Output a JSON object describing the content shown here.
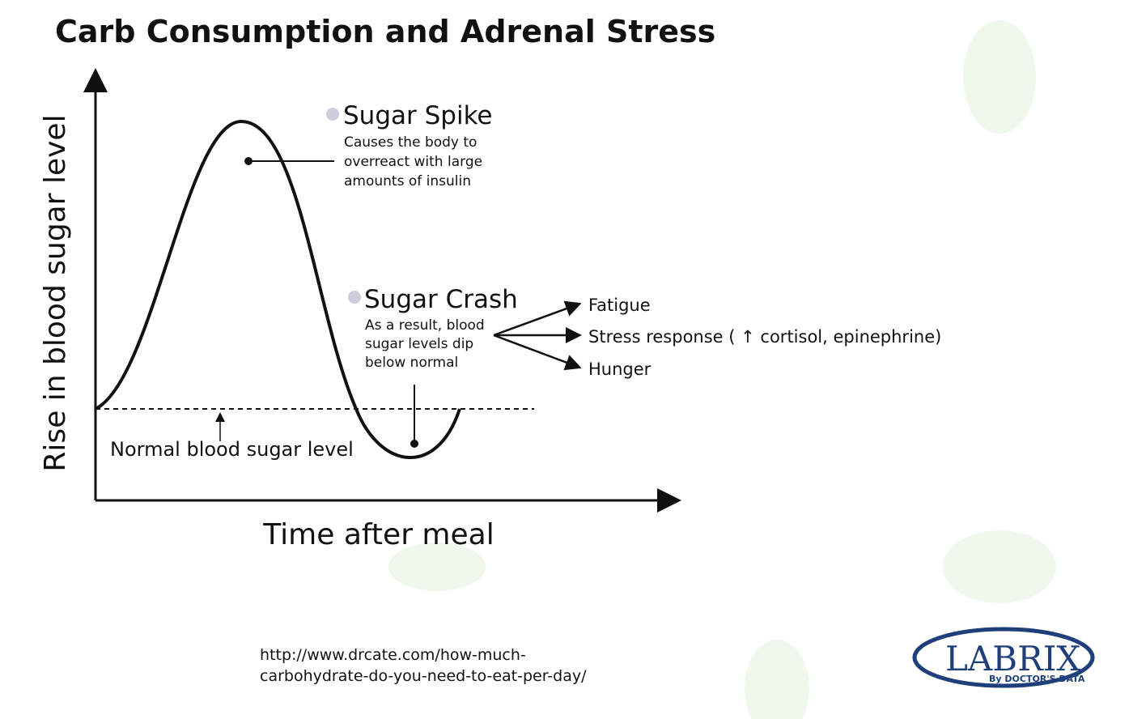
{
  "header": {
    "title": "Carb Consumption and Adrenal Stress"
  },
  "axes": {
    "y_label": "Rise in blood sugar level",
    "x_label": "Time after meal"
  },
  "spike": {
    "title": "Sugar Spike",
    "lines": [
      "Causes the body to",
      "overreact with large",
      "amounts of insulin"
    ]
  },
  "crash": {
    "title": "Sugar Crash",
    "lines": [
      "As a result, blood",
      "sugar levels dip",
      "below normal"
    ]
  },
  "effects": [
    "Fatigue",
    "Stress response ( ↑ cortisol, epinephrine)",
    "Hunger"
  ],
  "baseline": {
    "label": "Normal blood sugar level"
  },
  "source": {
    "lines": [
      "http://www.drcate.com/how-much-",
      "carbohydrate-do-you-need-to-eat-per-day/"
    ]
  },
  "logo": {
    "name": "LABRIX",
    "tagline": "By DOCTOR'S DATA"
  }
}
